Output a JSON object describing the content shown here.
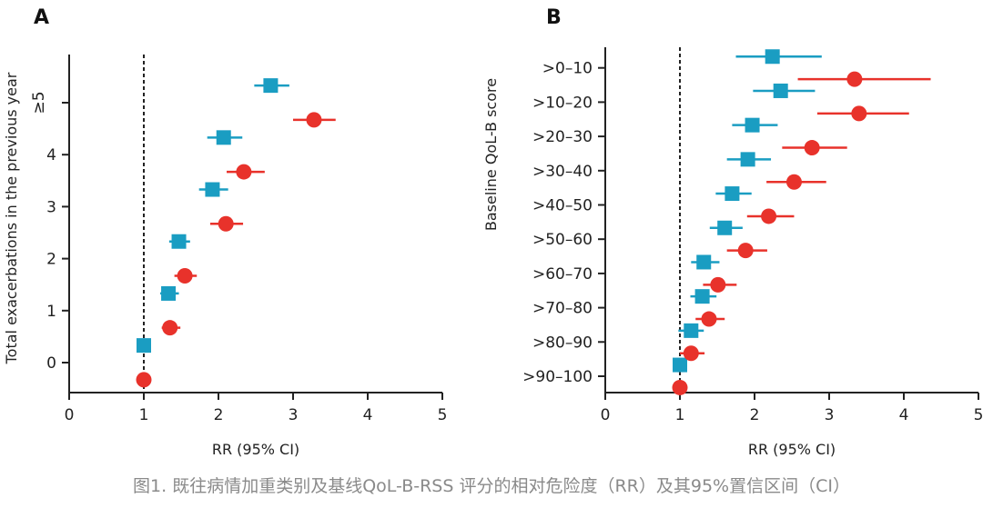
{
  "caption": "图1. 既往病情加重类别及基线QoL-B-RSS 评分的相对危险度（RR）及其95%置信区间（CI）",
  "colors": {
    "series1": "#1a9dc2",
    "series2": "#e8322b",
    "axis": "#222222"
  },
  "chart_data": [
    {
      "panel": "A",
      "type": "forest",
      "xlabel": "RR (95% CI)",
      "ylabel": "Total exacerbations in the previous year",
      "xlim": [
        0,
        5
      ],
      "xticks": [
        "0",
        "1",
        "2",
        "3",
        "4",
        "5"
      ],
      "reference_line": 1,
      "categories": [
        "0",
        "1",
        "2",
        "3",
        "4",
        "≥5"
      ],
      "series": [
        {
          "name": "square",
          "marker": "square",
          "color": "#1a9dc2",
          "values": [
            1.0,
            1.33,
            1.47,
            1.92,
            2.07,
            2.7
          ],
          "ci_low": [
            1.0,
            1.22,
            1.34,
            1.74,
            1.85,
            2.48
          ],
          "ci_high": [
            1.0,
            1.47,
            1.62,
            2.13,
            2.32,
            2.95
          ]
        },
        {
          "name": "circle",
          "marker": "circle",
          "color": "#e8322b",
          "values": [
            1.0,
            1.35,
            1.55,
            2.1,
            2.34,
            3.28
          ],
          "ci_low": [
            1.0,
            1.24,
            1.41,
            1.89,
            2.11,
            3.0
          ],
          "ci_high": [
            1.0,
            1.49,
            1.71,
            2.33,
            2.62,
            3.57
          ]
        }
      ]
    },
    {
      "panel": "B",
      "type": "forest",
      "xlabel": "RR (95% CI)",
      "ylabel": "Baseline QoL-B score",
      "xlim": [
        0,
        5
      ],
      "xticks": [
        "0",
        "1",
        "2",
        "3",
        "4",
        "5"
      ],
      "reference_line": 1,
      "categories": [
        ">0–10",
        ">10–20",
        ">20–30",
        ">30–40",
        ">40–50",
        ">50–60",
        ">60–70",
        ">70–80",
        ">80–90",
        ">90–100"
      ],
      "series": [
        {
          "name": "square",
          "marker": "square",
          "color": "#1a9dc2",
          "values": [
            2.24,
            2.35,
            1.97,
            1.91,
            1.7,
            1.6,
            1.32,
            1.3,
            1.15,
            1.0
          ],
          "ci_low": [
            1.75,
            1.98,
            1.7,
            1.63,
            1.48,
            1.4,
            1.15,
            1.14,
            0.98,
            1.0
          ],
          "ci_high": [
            2.9,
            2.81,
            2.31,
            2.22,
            1.96,
            1.84,
            1.53,
            1.49,
            1.32,
            1.0
          ]
        },
        {
          "name": "circle",
          "marker": "circle",
          "color": "#e8322b",
          "values": [
            3.34,
            3.4,
            2.77,
            2.53,
            2.19,
            1.88,
            1.51,
            1.39,
            1.15,
            1.0
          ],
          "ci_low": [
            2.58,
            2.84,
            2.37,
            2.16,
            1.9,
            1.63,
            1.31,
            1.21,
            1.0,
            1.0
          ],
          "ci_high": [
            4.36,
            4.07,
            3.24,
            2.96,
            2.53,
            2.17,
            1.76,
            1.6,
            1.33,
            1.0
          ]
        }
      ]
    }
  ]
}
